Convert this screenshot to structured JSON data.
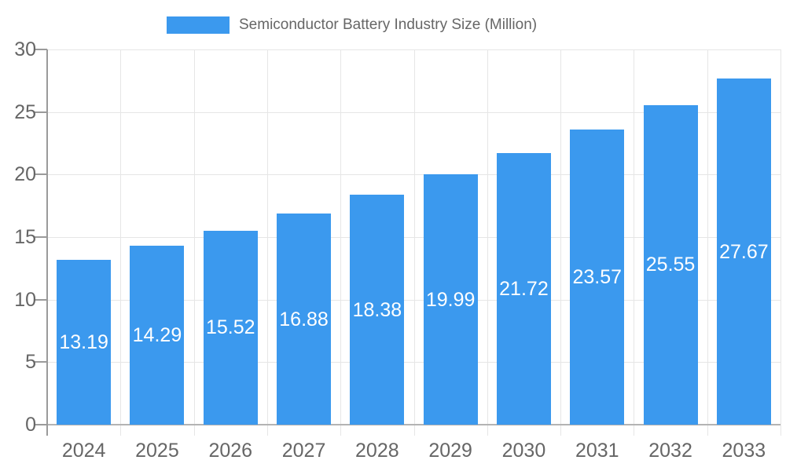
{
  "chart_data": {
    "type": "bar",
    "title": "Semiconductor Battery Industry Size (Million)",
    "legend": {
      "position": "top",
      "items": [
        {
          "label": "Semiconductor Battery Industry Size (Million)",
          "color": "#3b99ee"
        }
      ]
    },
    "categories": [
      "2024",
      "2025",
      "2026",
      "2027",
      "2028",
      "2029",
      "2030",
      "2031",
      "2032",
      "2033"
    ],
    "series": [
      {
        "name": "Semiconductor Battery Industry Size (Million)",
        "values": [
          13.19,
          14.29,
          15.52,
          16.88,
          18.38,
          19.99,
          21.72,
          23.57,
          25.55,
          27.67
        ],
        "value_labels": [
          "13.19",
          "14.29",
          "15.52",
          "16.88",
          "18.38",
          "19.99",
          "21.72",
          "23.57",
          "25.55",
          "27.67"
        ]
      }
    ],
    "xlabel": "",
    "ylabel": "",
    "ylim": [
      0,
      30
    ],
    "ytick_step": 5,
    "yticks": [
      "0",
      "5",
      "10",
      "15",
      "20",
      "25",
      "30"
    ],
    "grid": true,
    "value_labels_inside_bars": true,
    "colors": {
      "bar": "#3b99ee",
      "bar_label_text": "#ffffff",
      "axis_text": "#666666",
      "grid_line": "#e6e6e6",
      "axis_line": "#9a9a9a",
      "zero_line": "#b3b3b3",
      "background": "#ffffff"
    }
  }
}
